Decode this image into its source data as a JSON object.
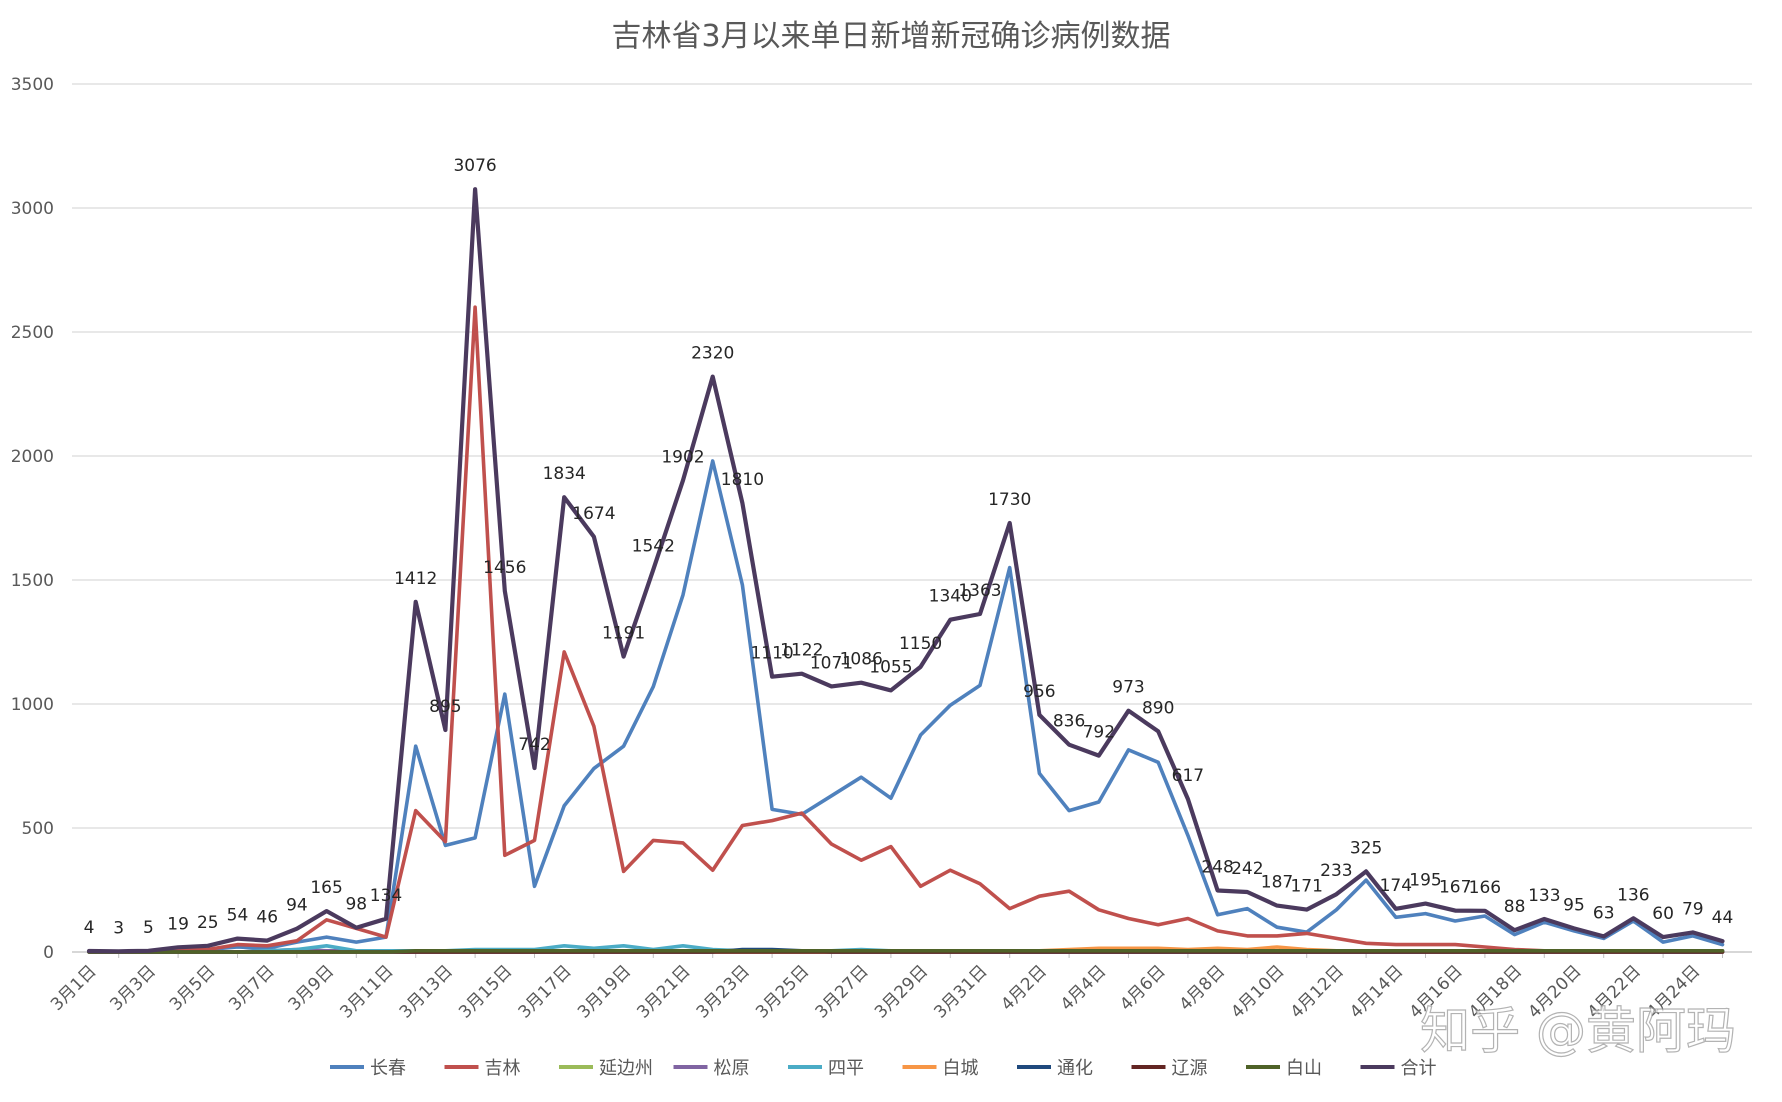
{
  "chart_data": {
    "type": "line",
    "title": "吉林省3月以来单日新增新冠确诊病例数据",
    "xlabel": "",
    "ylabel": "",
    "ylim": [
      0,
      3500
    ],
    "yticks": [
      0,
      500,
      1000,
      1500,
      2000,
      2500,
      3000,
      3500
    ],
    "grid": true,
    "legend_position": "bottom",
    "x": [
      "3月1日",
      "3月2日",
      "3月3日",
      "3月4日",
      "3月5日",
      "3月6日",
      "3月7日",
      "3月8日",
      "3月9日",
      "3月10日",
      "3月11日",
      "3月12日",
      "3月13日",
      "3月14日",
      "3月15日",
      "3月16日",
      "3月17日",
      "3月18日",
      "3月19日",
      "3月20日",
      "3月21日",
      "3月22日",
      "3月23日",
      "3月24日",
      "3月25日",
      "3月26日",
      "3月27日",
      "3月28日",
      "3月29日",
      "3月30日",
      "3月31日",
      "4月1日",
      "4月2日",
      "4月3日",
      "4月4日",
      "4月5日",
      "4月6日",
      "4月7日",
      "4月8日",
      "4月9日",
      "4月10日",
      "4月11日",
      "4月12日",
      "4月13日",
      "4月14日",
      "4月15日",
      "4月16日",
      "4月17日",
      "4月18日",
      "4月19日",
      "4月20日",
      "4月21日",
      "4月22日",
      "4月23日",
      "4月24日",
      "4月25日"
    ],
    "x_tick_labels": [
      "3月1日",
      "3月3日",
      "3月5日",
      "3月7日",
      "3月9日",
      "3月11日",
      "3月13日",
      "3月15日",
      "3月17日",
      "3月19日",
      "3月21日",
      "3月23日",
      "3月25日",
      "3月27日",
      "3月29日",
      "3月31日",
      "4月2日",
      "4月4日",
      "4月6日",
      "4月8日",
      "4月10日",
      "4月12日",
      "4月14日",
      "4月16日",
      "4月18日",
      "4月20日",
      "4月22日",
      "4月24日"
    ],
    "series": [
      {
        "name": "长春",
        "color": "#4F81BD",
        "values": [
          2,
          1,
          3,
          8,
          10,
          20,
          15,
          40,
          60,
          40,
          60,
          830,
          430,
          460,
          1040,
          265,
          590,
          740,
          830,
          1070,
          1440,
          1980,
          1480,
          575,
          555,
          630,
          705,
          620,
          875,
          995,
          1075,
          1550,
          720,
          570,
          605,
          815,
          765,
          470,
          150,
          175,
          100,
          80,
          170,
          290,
          140,
          155,
          125,
          145,
          70,
          120,
          85,
          55,
          125,
          40,
          65,
          30
        ]
      },
      {
        "name": "吉林",
        "color": "#C0504D",
        "values": [
          1,
          1,
          1,
          8,
          10,
          30,
          25,
          45,
          130,
          95,
          60,
          570,
          445,
          2600,
          390,
          450,
          1210,
          910,
          325,
          450,
          440,
          330,
          510,
          530,
          560,
          435,
          370,
          425,
          265,
          330,
          275,
          175,
          225,
          245,
          170,
          135,
          110,
          135,
          85,
          65,
          65,
          75,
          55,
          35,
          30,
          30,
          30,
          20,
          10,
          5,
          5,
          5,
          5,
          5,
          5,
          5
        ]
      },
      {
        "name": "延边州",
        "color": "#9BBB59",
        "values": [
          0,
          0,
          0,
          0,
          0,
          0,
          0,
          0,
          0,
          0,
          0,
          0,
          0,
          0,
          0,
          0,
          0,
          0,
          0,
          0,
          0,
          0,
          0,
          0,
          0,
          0,
          0,
          0,
          0,
          0,
          0,
          0,
          0,
          0,
          0,
          0,
          0,
          0,
          0,
          0,
          0,
          0,
          0,
          0,
          0,
          0,
          0,
          0,
          0,
          0,
          0,
          0,
          0,
          0,
          0,
          0
        ]
      },
      {
        "name": "松原",
        "color": "#8064A2",
        "values": [
          0,
          0,
          0,
          0,
          0,
          0,
          5,
          10,
          5,
          5,
          0,
          0,
          0,
          0,
          0,
          0,
          0,
          0,
          0,
          0,
          0,
          0,
          0,
          0,
          0,
          0,
          0,
          0,
          0,
          0,
          0,
          0,
          0,
          0,
          0,
          0,
          0,
          0,
          0,
          0,
          0,
          0,
          0,
          0,
          0,
          0,
          0,
          0,
          0,
          0,
          0,
          0,
          0,
          0,
          0,
          0
        ]
      },
      {
        "name": "四平",
        "color": "#4BACC6",
        "values": [
          0,
          0,
          0,
          0,
          0,
          0,
          5,
          10,
          25,
          5,
          5,
          5,
          5,
          10,
          10,
          10,
          25,
          15,
          25,
          10,
          25,
          10,
          5,
          5,
          5,
          5,
          10,
          5,
          5,
          5,
          5,
          5,
          5,
          5,
          5,
          5,
          5,
          5,
          5,
          5,
          5,
          5,
          5,
          5,
          5,
          5,
          5,
          5,
          5,
          5,
          5,
          5,
          5,
          5,
          5,
          5
        ]
      },
      {
        "name": "白城",
        "color": "#F79646",
        "values": [
          0,
          0,
          0,
          0,
          0,
          0,
          0,
          0,
          0,
          0,
          0,
          0,
          0,
          0,
          0,
          0,
          0,
          0,
          0,
          0,
          0,
          0,
          0,
          0,
          0,
          0,
          0,
          0,
          0,
          0,
          0,
          5,
          5,
          10,
          15,
          15,
          15,
          10,
          15,
          10,
          20,
          10,
          5,
          5,
          5,
          0,
          0,
          0,
          0,
          0,
          0,
          0,
          0,
          5,
          5,
          0
        ]
      },
      {
        "name": "通化",
        "color": "#1F497D",
        "values": [
          0,
          0,
          0,
          0,
          0,
          0,
          0,
          0,
          0,
          0,
          0,
          0,
          0,
          0,
          0,
          0,
          0,
          0,
          0,
          0,
          0,
          0,
          10,
          10,
          5,
          0,
          0,
          0,
          0,
          0,
          0,
          0,
          0,
          0,
          0,
          0,
          0,
          0,
          0,
          0,
          0,
          0,
          0,
          0,
          0,
          0,
          0,
          0,
          0,
          0,
          0,
          0,
          0,
          0,
          0,
          0
        ]
      },
      {
        "name": "辽源",
        "color": "#632523",
        "values": [
          0,
          0,
          0,
          0,
          0,
          0,
          0,
          0,
          0,
          0,
          0,
          0,
          0,
          0,
          0,
          0,
          0,
          0,
          0,
          0,
          0,
          0,
          0,
          0,
          0,
          0,
          0,
          0,
          0,
          0,
          0,
          0,
          0,
          0,
          0,
          0,
          0,
          0,
          0,
          0,
          0,
          0,
          0,
          0,
          0,
          0,
          0,
          0,
          0,
          0,
          0,
          0,
          0,
          0,
          0,
          0
        ]
      },
      {
        "name": "白山",
        "color": "#4F6228",
        "values": [
          0,
          0,
          0,
          0,
          0,
          0,
          0,
          0,
          0,
          0,
          0,
          5,
          5,
          5,
          5,
          5,
          5,
          5,
          5,
          5,
          5,
          5,
          5,
          5,
          5,
          5,
          5,
          5,
          5,
          5,
          5,
          5,
          5,
          5,
          5,
          5,
          5,
          5,
          5,
          5,
          5,
          5,
          5,
          5,
          5,
          5,
          5,
          5,
          5,
          5,
          5,
          5,
          5,
          5,
          5,
          5
        ]
      },
      {
        "name": "合计",
        "color": "#4B3A5E",
        "values": [
          4,
          3,
          5,
          19,
          25,
          54,
          46,
          94,
          165,
          98,
          134,
          1412,
          895,
          3076,
          1456,
          742,
          1834,
          1674,
          1191,
          1542,
          1902,
          2320,
          1810,
          1110,
          1122,
          1071,
          1086,
          1055,
          1150,
          1340,
          1363,
          1730,
          956,
          836,
          792,
          973,
          890,
          617,
          248,
          242,
          187,
          171,
          233,
          325,
          174,
          195,
          167,
          166,
          88,
          133,
          95,
          63,
          136,
          60,
          79,
          44
        ]
      }
    ],
    "data_labels_series": "合计"
  },
  "watermark": "知乎 @黄阿玛"
}
